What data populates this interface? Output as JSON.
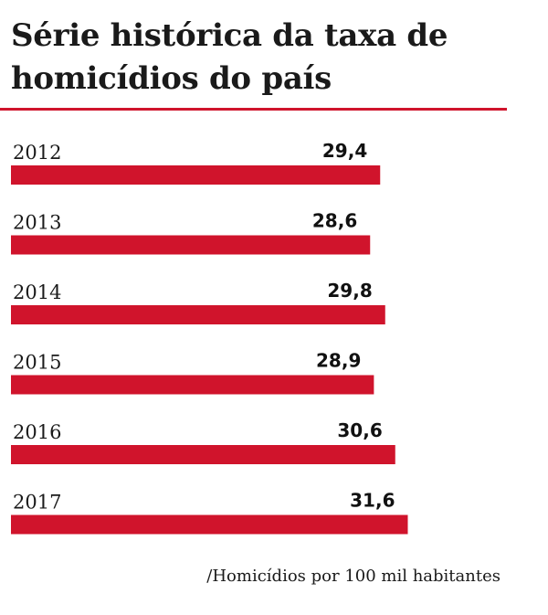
{
  "chart_data": {
    "type": "bar",
    "orientation": "horizontal",
    "title": "Série histórica da taxa de homicídios do país",
    "categories": [
      "2012",
      "2013",
      "2014",
      "2015",
      "2016",
      "2017"
    ],
    "values": [
      29.4,
      28.6,
      29.8,
      28.9,
      30.6,
      31.6
    ],
    "value_labels": [
      "29,4",
      "28,6",
      "29,8",
      "28,9",
      "30,6",
      "31,6"
    ],
    "unit_note": "/Homicídios por 100 mil habitantes",
    "bar_color": "#d0142c",
    "accent_color": "#d0142c",
    "grid": false,
    "legend": "none"
  }
}
